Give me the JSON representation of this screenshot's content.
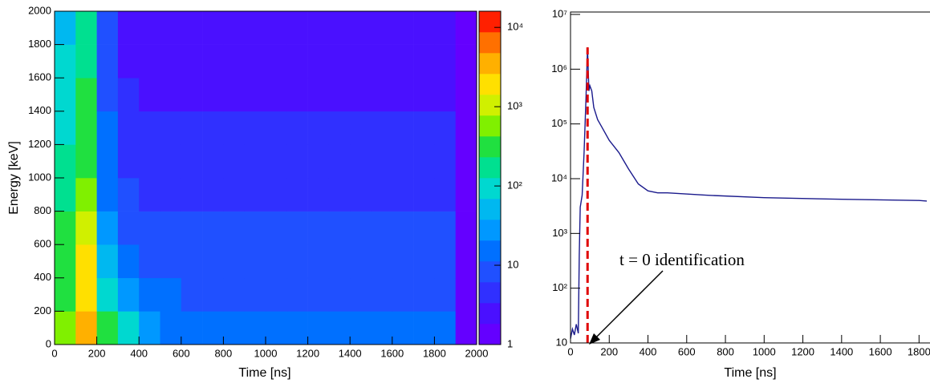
{
  "chart_data": [
    {
      "type": "heatmap",
      "xlabel": "Time [ns]",
      "ylabel": "Energy [keV]",
      "xlim": [
        0,
        2000
      ],
      "ylim": [
        0,
        2000
      ],
      "xticks": [
        0,
        200,
        400,
        600,
        800,
        1000,
        1200,
        1400,
        1600,
        1800,
        2000
      ],
      "yticks": [
        0,
        200,
        400,
        600,
        800,
        1000,
        1200,
        1400,
        1600,
        1800,
        2000
      ],
      "xbins": [
        0,
        100,
        200,
        300,
        400,
        500,
        600,
        700,
        800,
        900,
        1000,
        1100,
        1200,
        1300,
        1400,
        1500,
        1600,
        1700,
        1800,
        1900,
        2000
      ],
      "ybins": [
        0,
        200,
        400,
        600,
        800,
        1000,
        1200,
        1400,
        1600,
        1800,
        2000
      ],
      "z": [
        [
          500,
          3000,
          300,
          80,
          30,
          20,
          15,
          12,
          12,
          12,
          12,
          12,
          12,
          12,
          12,
          12,
          12,
          12,
          12,
          1
        ],
        [
          400,
          2000,
          100,
          30,
          15,
          12,
          10,
          10,
          10,
          10,
          10,
          10,
          10,
          10,
          10,
          10,
          10,
          10,
          10,
          1
        ],
        [
          300,
          1500,
          50,
          15,
          10,
          9,
          9,
          9,
          9,
          9,
          9,
          9,
          9,
          9,
          9,
          9,
          9,
          9,
          9,
          1
        ],
        [
          250,
          1000,
          30,
          10,
          8,
          8,
          8,
          8,
          8,
          8,
          8,
          8,
          8,
          8,
          8,
          8,
          8,
          8,
          8,
          1
        ],
        [
          200,
          600,
          20,
          7,
          6,
          6,
          6,
          6,
          6,
          6,
          6,
          6,
          6,
          6,
          6,
          6,
          6,
          6,
          6,
          1
        ],
        [
          150,
          400,
          15,
          5,
          5,
          5,
          5,
          5,
          5,
          5,
          5,
          5,
          5,
          5,
          5,
          5,
          5,
          5,
          5,
          1
        ],
        [
          120,
          300,
          12,
          4,
          4,
          4,
          4,
          4,
          4,
          4,
          4,
          4,
          4,
          4,
          4,
          4,
          4,
          4,
          4,
          1
        ],
        [
          100,
          250,
          10,
          4,
          3,
          3,
          3,
          3,
          3,
          3,
          3,
          3,
          3,
          3,
          3,
          3,
          3,
          3,
          3,
          1
        ],
        [
          80,
          200,
          8,
          3,
          3,
          3,
          3,
          3,
          3,
          3,
          3,
          3,
          3,
          3,
          3,
          3,
          3,
          3,
          3,
          1
        ],
        [
          60,
          150,
          7,
          3,
          3,
          3,
          3,
          3,
          3,
          3,
          3,
          3,
          3,
          3,
          3,
          3,
          3,
          3,
          3,
          1
        ]
      ],
      "zlim": [
        1,
        16000
      ],
      "zlog": true,
      "zticks": [
        1,
        10,
        {
          "value": 100,
          "label": "10²"
        },
        {
          "value": 1000,
          "label": "10³"
        },
        {
          "value": 10000,
          "label": "10⁴"
        }
      ],
      "palette": [
        "#6400ff",
        "#4a10ff",
        "#3030ff",
        "#2050ff",
        "#0070ff",
        "#0098ff",
        "#00b8f0",
        "#00d8d0",
        "#00e090",
        "#20e040",
        "#80f000",
        "#d0f000",
        "#ffe000",
        "#ffb000",
        "#ff7000",
        "#ff2000"
      ]
    },
    {
      "type": "line",
      "xlabel": "Time [ns]",
      "xlim": [
        0,
        1840
      ],
      "ylim": [
        10,
        10000000
      ],
      "ylog": true,
      "xticks": [
        0,
        200,
        400,
        600,
        800,
        1000,
        1200,
        1400,
        1600,
        1800
      ],
      "yticks": [
        10,
        {
          "value": 100,
          "label": "10²"
        },
        {
          "value": 1000,
          "label": "10³"
        },
        {
          "value": 10000,
          "label": "10⁴"
        },
        {
          "value": 100000,
          "label": "10⁵"
        },
        {
          "value": 1000000,
          "label": "10⁶"
        },
        {
          "value": 10000000,
          "label": "10⁷"
        }
      ],
      "series": [
        {
          "color": "#1a1a8c",
          "x": [
            0,
            10,
            20,
            30,
            40,
            45,
            50,
            60,
            70,
            80,
            88,
            95,
            100,
            110,
            120,
            140,
            160,
            200,
            250,
            300,
            350,
            400,
            450,
            500,
            700,
            1000,
            1400,
            1800,
            1840
          ],
          "values": [
            12,
            18,
            14,
            22,
            15,
            400,
            3000,
            5000,
            30000,
            300000,
            2500000,
            400000,
            500000,
            400000,
            200000,
            120000,
            90000,
            50000,
            30000,
            15000,
            8000,
            6000,
            5500,
            5500,
            5000,
            4500,
            4200,
            4000,
            3900
          ]
        }
      ],
      "vline": {
        "x": 88,
        "color": "#e00000"
      },
      "annotation": "t = 0 identification"
    }
  ]
}
